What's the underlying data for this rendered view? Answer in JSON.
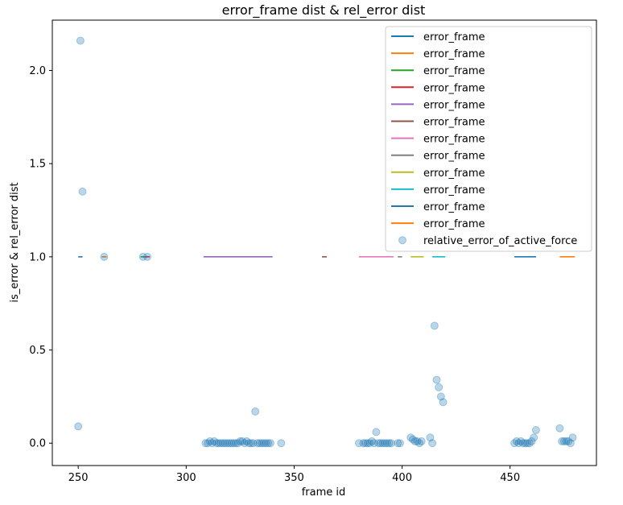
{
  "chart_data": {
    "type": "scatter",
    "title": "error_frame dist & rel_error dist",
    "xlabel": "frame id",
    "ylabel": "is_error & rel_error dist",
    "xlim": [
      238,
      490
    ],
    "ylim": [
      -0.12,
      2.27
    ],
    "x_ticks": [
      250,
      300,
      350,
      400,
      450
    ],
    "y_ticks": [
      0.0,
      0.5,
      1.0,
      1.5,
      2.0
    ],
    "x_tick_labels": [
      "250",
      "300",
      "350",
      "400",
      "450"
    ],
    "y_tick_labels": [
      "0.0",
      "0.5",
      "1.0",
      "1.5",
      "2.0"
    ],
    "grid": false,
    "legend_position": "top-right",
    "error_frame_segments": [
      {
        "name": "error_frame",
        "color": "#1f77b4",
        "x": [
          250,
          252
        ],
        "y": 1.0
      },
      {
        "name": "error_frame",
        "color": "#ff7f0e",
        "x": [
          262,
          262
        ],
        "y": 1.0
      },
      {
        "name": "error_frame",
        "color": "#2ca02c",
        "x": [
          280,
          280
        ],
        "y": 1.0
      },
      {
        "name": "error_frame",
        "color": "#d62728",
        "x": [
          282,
          282
        ],
        "y": 1.0
      },
      {
        "name": "error_frame",
        "color": "#9467bd",
        "x": [
          308,
          340
        ],
        "y": 1.0
      },
      {
        "name": "error_frame",
        "color": "#8c564b",
        "x": [
          364,
          364
        ],
        "y": 1.0
      },
      {
        "name": "error_frame",
        "color": "#e377c2",
        "x": [
          380,
          396
        ],
        "y": 1.0
      },
      {
        "name": "error_frame",
        "color": "#7f7f7f",
        "x": [
          398,
          400
        ],
        "y": 1.0
      },
      {
        "name": "error_frame",
        "color": "#bcbd22",
        "x": [
          404,
          410
        ],
        "y": 1.0
      },
      {
        "name": "error_frame",
        "color": "#17becf",
        "x": [
          414,
          420
        ],
        "y": 1.0
      },
      {
        "name": "error_frame",
        "color": "#1f77b4",
        "x": [
          452,
          462
        ],
        "y": 1.0
      },
      {
        "name": "error_frame",
        "color": "#ff7f0e",
        "x": [
          473,
          480
        ],
        "y": 1.0
      }
    ],
    "scatter_series": {
      "name": "relative_error_of_active_force",
      "color": "#1f77b4",
      "x": [
        250,
        251,
        252,
        262,
        280,
        282,
        309,
        310,
        311,
        312,
        313,
        314,
        315,
        316,
        317,
        318,
        319,
        320,
        321,
        322,
        323,
        324,
        325,
        326,
        327,
        328,
        329,
        330,
        331,
        332,
        333,
        334,
        335,
        336,
        337,
        338,
        339,
        344,
        380,
        382,
        383,
        384,
        385,
        386,
        387,
        388,
        389,
        390,
        391,
        392,
        393,
        394,
        395,
        398,
        399,
        404,
        405,
        406,
        407,
        408,
        409,
        413,
        414,
        415,
        416,
        417,
        418,
        419,
        452,
        453,
        454,
        455,
        456,
        457,
        458,
        459,
        460,
        461,
        462,
        473,
        474,
        475,
        476,
        477,
        478,
        479
      ],
      "y": [
        0.09,
        2.16,
        1.35,
        1.0,
        1.0,
        1.0,
        0.0,
        0.0,
        0.01,
        0.0,
        0.01,
        0.0,
        0.0,
        0.0,
        0.0,
        0.0,
        0.0,
        0.0,
        0.0,
        0.0,
        0.0,
        0.0,
        0.01,
        0.01,
        0.0,
        0.01,
        0.0,
        0.0,
        0.0,
        0.17,
        0.0,
        0.0,
        0.0,
        0.0,
        0.0,
        0.0,
        0.0,
        0.0,
        0.0,
        0.0,
        0.0,
        0.0,
        0.0,
        0.01,
        0.0,
        0.06,
        0.0,
        0.0,
        0.0,
        0.0,
        0.0,
        0.0,
        0.0,
        0.0,
        0.0,
        0.03,
        0.02,
        0.01,
        0.01,
        0.0,
        0.01,
        0.03,
        0.0,
        0.63,
        0.34,
        0.3,
        0.25,
        0.22,
        0.0,
        0.01,
        0.0,
        0.01,
        0.0,
        0.0,
        0.0,
        0.0,
        0.01,
        0.03,
        0.07,
        0.08,
        0.01,
        0.01,
        0.01,
        0.01,
        0.0,
        0.03
      ]
    }
  }
}
